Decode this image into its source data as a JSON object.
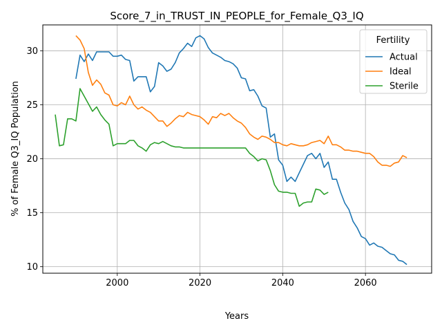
{
  "chart_data": {
    "type": "line",
    "title": "Score_7_in_TRUST_IN_PEOPLE_for_Female_Q3_IQ",
    "xlabel": "Years",
    "ylabel": "% of Female Q3_IQ Population",
    "xlim": [
      1982,
      2076
    ],
    "ylim": [
      9.4,
      32.4
    ],
    "xticks": [
      2000,
      2020,
      2040,
      2060
    ],
    "yticks": [
      10,
      15,
      20,
      25,
      30
    ],
    "grid": true,
    "legend": {
      "title": "Fertility",
      "position": "top-right"
    },
    "series": [
      {
        "name": "Actual",
        "color": "#1f77b4",
        "x": [
          1990,
          1991,
          1992,
          1993,
          1994,
          1995,
          1996,
          1997,
          1998,
          1999,
          2000,
          2001,
          2002,
          2003,
          2004,
          2005,
          2006,
          2007,
          2008,
          2009,
          2010,
          2011,
          2012,
          2013,
          2014,
          2015,
          2016,
          2017,
          2018,
          2019,
          2020,
          2021,
          2022,
          2023,
          2024,
          2025,
          2026,
          2027,
          2028,
          2029,
          2030,
          2031,
          2032,
          2033,
          2034,
          2035,
          2036,
          2037,
          2038,
          2039,
          2040,
          2041,
          2042,
          2043,
          2044,
          2045,
          2046,
          2047,
          2048,
          2049,
          2050,
          2051,
          2052,
          2053,
          2054,
          2055,
          2056,
          2057,
          2058,
          2059,
          2060,
          2061,
          2062,
          2063,
          2064,
          2065,
          2066,
          2067,
          2068,
          2069,
          2070
        ],
        "y": [
          27.4,
          29.6,
          29.0,
          29.7,
          29.1,
          29.9,
          29.9,
          29.9,
          29.9,
          29.5,
          29.5,
          29.6,
          29.2,
          29.1,
          27.2,
          27.6,
          27.6,
          27.6,
          26.2,
          26.7,
          28.9,
          28.6,
          28.1,
          28.3,
          28.9,
          29.8,
          30.2,
          30.7,
          30.4,
          31.2,
          31.4,
          31.1,
          30.3,
          29.8,
          29.6,
          29.4,
          29.1,
          29.0,
          28.8,
          28.4,
          27.5,
          27.4,
          26.3,
          26.4,
          25.8,
          24.9,
          24.7,
          22.0,
          22.3,
          19.9,
          19.4,
          17.9,
          18.3,
          17.9,
          18.7,
          19.5,
          20.3,
          20.5,
          20.0,
          20.5,
          19.2,
          19.7,
          18.1,
          18.1,
          16.9,
          15.9,
          15.3,
          14.2,
          13.6,
          12.8,
          12.6,
          12.0,
          12.2,
          11.9,
          11.8,
          11.5,
          11.2,
          11.1,
          10.6,
          10.5,
          10.2
        ]
      },
      {
        "name": "Ideal",
        "color": "#ff7f0e",
        "x": [
          1990,
          1991,
          1992,
          1993,
          1994,
          1995,
          1996,
          1997,
          1998,
          1999,
          2000,
          2001,
          2002,
          2003,
          2004,
          2005,
          2006,
          2007,
          2008,
          2009,
          2010,
          2011,
          2012,
          2013,
          2014,
          2015,
          2016,
          2017,
          2018,
          2019,
          2020,
          2021,
          2022,
          2023,
          2024,
          2025,
          2026,
          2027,
          2028,
          2029,
          2030,
          2031,
          2032,
          2033,
          2034,
          2035,
          2036,
          2037,
          2038,
          2039,
          2040,
          2041,
          2042,
          2043,
          2044,
          2045,
          2046,
          2047,
          2048,
          2049,
          2050,
          2051,
          2052,
          2053,
          2054,
          2055,
          2056,
          2057,
          2058,
          2059,
          2060,
          2061,
          2062,
          2063,
          2064,
          2065,
          2066,
          2067,
          2068,
          2069,
          2070
        ],
        "y": [
          31.4,
          31.0,
          30.2,
          28.0,
          26.8,
          27.3,
          26.9,
          26.1,
          25.9,
          25.0,
          24.9,
          25.2,
          25.0,
          25.8,
          25.0,
          24.6,
          24.8,
          24.5,
          24.3,
          23.9,
          23.5,
          23.5,
          23.0,
          23.3,
          23.7,
          24.0,
          23.9,
          24.3,
          24.1,
          24.0,
          23.9,
          23.6,
          23.2,
          23.9,
          23.8,
          24.2,
          24.0,
          24.2,
          23.8,
          23.5,
          23.3,
          22.9,
          22.3,
          22.0,
          21.8,
          22.1,
          22.0,
          21.8,
          21.5,
          21.5,
          21.3,
          21.2,
          21.4,
          21.3,
          21.2,
          21.2,
          21.3,
          21.5,
          21.6,
          21.7,
          21.4,
          22.1,
          21.3,
          21.3,
          21.1,
          20.8,
          20.8,
          20.7,
          20.7,
          20.6,
          20.5,
          20.5,
          20.2,
          19.7,
          19.4,
          19.4,
          19.3,
          19.6,
          19.7,
          20.3,
          20.1
        ]
      },
      {
        "name": "Sterile",
        "color": "#2ca02c",
        "x": [
          1985,
          1986,
          1987,
          1988,
          1989,
          1990,
          1991,
          1992,
          1993,
          1994,
          1995,
          1996,
          1997,
          1998,
          1999,
          2000,
          2001,
          2002,
          2003,
          2004,
          2005,
          2006,
          2007,
          2008,
          2009,
          2010,
          2011,
          2012,
          2013,
          2014,
          2015,
          2016,
          2017,
          2018,
          2019,
          2020,
          2021,
          2022,
          2023,
          2024,
          2025,
          2026,
          2027,
          2028,
          2029,
          2030,
          2031,
          2032,
          2033,
          2034,
          2035,
          2036,
          2037,
          2038,
          2039,
          2040,
          2041,
          2042,
          2043,
          2044,
          2045,
          2046,
          2047,
          2048,
          2049,
          2050,
          2051
        ],
        "y": [
          24.1,
          21.2,
          21.3,
          23.7,
          23.7,
          23.5,
          26.5,
          25.8,
          25.1,
          24.4,
          24.8,
          24.1,
          23.6,
          23.2,
          21.2,
          21.4,
          21.4,
          21.4,
          21.7,
          21.7,
          21.2,
          21.0,
          20.7,
          21.3,
          21.5,
          21.4,
          21.6,
          21.4,
          21.2,
          21.1,
          21.1,
          21.0,
          21.0,
          21.0,
          21.0,
          21.0,
          21.0,
          21.0,
          21.0,
          21.0,
          21.0,
          21.0,
          21.0,
          21.0,
          21.0,
          21.0,
          21.0,
          20.5,
          20.2,
          19.8,
          20.0,
          19.9,
          18.9,
          17.6,
          17.0,
          16.9,
          16.9,
          16.8,
          16.8,
          15.6,
          15.9,
          16.0,
          16.0,
          17.2,
          17.1,
          16.7,
          16.9
        ]
      }
    ]
  }
}
